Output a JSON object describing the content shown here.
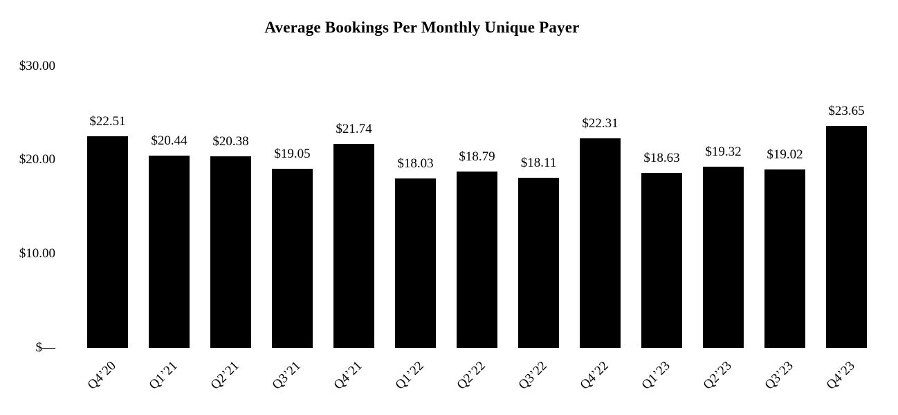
{
  "title": "Average Bookings Per Monthly Unique Payer",
  "colors": {
    "bar": "#000000",
    "background": "#ffffff",
    "text": "#000000"
  },
  "y_axis": {
    "tick_labels": [
      "$30.00",
      "$20.00",
      "$10.00",
      "$—"
    ],
    "tick_values": [
      30,
      20,
      10,
      0
    ]
  },
  "chart_data": {
    "type": "bar",
    "title": "Average Bookings Per Monthly Unique Payer",
    "xlabel": "",
    "ylabel": "",
    "ylim": [
      0,
      30
    ],
    "grid": false,
    "legend": null,
    "bar_color": "#000000",
    "categories": [
      "Q4’20",
      "Q1’21",
      "Q2’21",
      "Q3’21",
      "Q4’21",
      "Q1’22",
      "Q2’22",
      "Q3’22",
      "Q4’22",
      "Q1’23",
      "Q2’23",
      "Q3’23",
      "Q4’23"
    ],
    "values": [
      22.51,
      20.44,
      20.38,
      19.05,
      21.74,
      18.03,
      18.79,
      18.11,
      22.31,
      18.63,
      19.32,
      19.02,
      23.65
    ],
    "value_labels": [
      "$22.51",
      "$20.44",
      "$20.38",
      "$19.05",
      "$21.74",
      "$18.03",
      "$18.79",
      "$18.11",
      "$22.31",
      "$18.63",
      "$19.32",
      "$19.02",
      "$23.65"
    ]
  }
}
